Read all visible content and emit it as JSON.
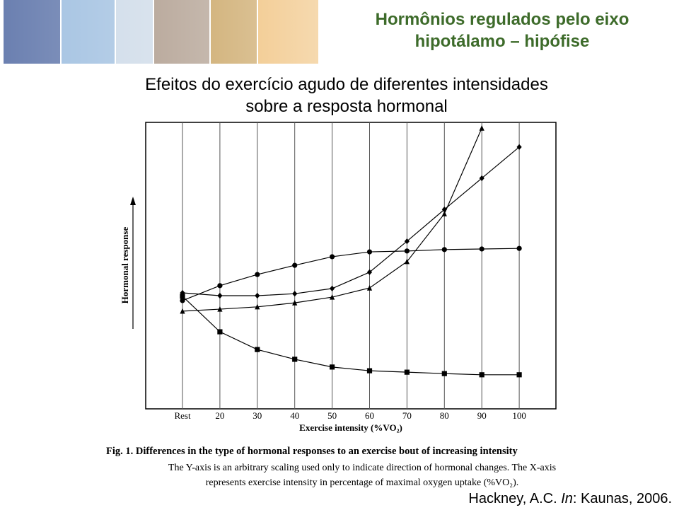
{
  "slide": {
    "title_lines": [
      "Hormônios regulados pelo eixo",
      "hipotálamo – hipófise"
    ],
    "subtitle_lines": [
      "Efeitos do exercício agudo de diferentes intensidades",
      "sobre a resposta hormonal"
    ],
    "caption_head": "Fig. 1. Differences in the type of hormonal responses to an exercise bout of increasing intensity",
    "caption_lines": [
      "The Y-axis is an arbitrary scaling used only to indicate direction of hormonal changes. The X-axis",
      "represents exercise intensity in percentage of maximal oxygen uptake (%VO₂)."
    ],
    "citation": [
      "Hackney, A.C. ",
      "In",
      ": Kaunas, 2006."
    ]
  },
  "chart_data": {
    "type": "line",
    "x_label": "Exercise intensity (%VO₂)",
    "y_label": "Hormonal response",
    "categories": [
      "Rest",
      "20",
      "30",
      "40",
      "50",
      "60",
      "70",
      "80",
      "90",
      "100"
    ],
    "ylim": [
      0,
      10
    ],
    "grid": true,
    "series": [
      {
        "color": "#000000",
        "marker": "circle",
        "values": [
          3.78,
          4.3,
          4.69,
          5.01,
          5.31,
          5.48,
          5.51,
          5.56,
          5.58,
          5.6
        ]
      },
      {
        "color": "#000000",
        "marker": "square",
        "values": [
          3.93,
          2.69,
          2.07,
          1.73,
          1.46,
          1.33,
          1.28,
          1.23,
          1.19,
          1.19
        ]
      },
      {
        "color": "#000000",
        "marker": "diamond",
        "values": [
          4.05,
          3.95,
          3.95,
          4.02,
          4.2,
          4.77,
          5.85,
          6.96,
          8.05,
          9.14
        ]
      },
      {
        "color": "#000000",
        "marker": "triangle",
        "values": [
          3.41,
          3.48,
          3.56,
          3.7,
          3.9,
          4.22,
          5.14,
          6.81,
          9.8,
          null
        ]
      }
    ]
  }
}
